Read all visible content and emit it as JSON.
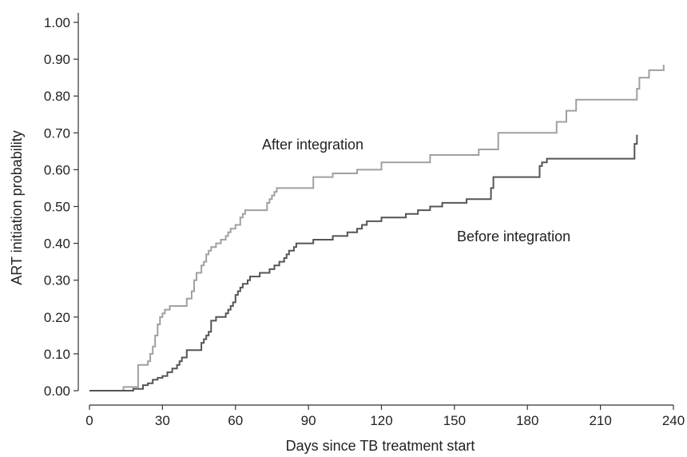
{
  "chart_data": {
    "type": "line",
    "title": "",
    "xlabel": "Days since TB treatment start",
    "ylabel": "ART initiation probability",
    "xlim": [
      0,
      240
    ],
    "ylim": [
      0,
      1
    ],
    "x_ticks": [
      "0",
      "30",
      "60",
      "90",
      "120",
      "150",
      "180",
      "210",
      "240"
    ],
    "y_ticks": [
      "0.00",
      "0.10",
      "0.20",
      "0.30",
      "0.40",
      "0.50",
      "0.60",
      "0.70",
      "0.80",
      "0.90",
      "1.00"
    ],
    "grid": false,
    "legend": "none",
    "step": true,
    "series": [
      {
        "name": "After integration",
        "color": "#a0a0a0",
        "x": [
          0,
          14,
          20,
          21,
          22,
          24,
          25,
          26,
          27,
          28,
          29,
          30,
          31,
          33,
          35,
          40,
          42,
          43,
          44,
          46,
          47,
          48,
          49,
          50,
          52,
          54,
          56,
          57,
          58,
          60,
          62,
          63,
          64,
          73,
          74,
          75,
          76,
          77,
          78,
          92,
          100,
          110,
          120,
          140,
          160,
          168,
          192,
          196,
          200,
          210,
          225,
          226,
          230,
          236
        ],
        "y": [
          0,
          0.01,
          0.07,
          0.07,
          0.07,
          0.08,
          0.1,
          0.12,
          0.15,
          0.18,
          0.2,
          0.21,
          0.22,
          0.23,
          0.23,
          0.25,
          0.27,
          0.3,
          0.32,
          0.34,
          0.35,
          0.37,
          0.38,
          0.39,
          0.4,
          0.41,
          0.42,
          0.43,
          0.44,
          0.45,
          0.47,
          0.48,
          0.49,
          0.51,
          0.52,
          0.53,
          0.54,
          0.55,
          0.55,
          0.58,
          0.59,
          0.6,
          0.62,
          0.64,
          0.655,
          0.7,
          0.73,
          0.76,
          0.79,
          0.79,
          0.82,
          0.85,
          0.87,
          0.885
        ]
      },
      {
        "name": "Before integration",
        "color": "#555555",
        "x": [
          0,
          18,
          22,
          24,
          26,
          28,
          30,
          32,
          34,
          36,
          37,
          38,
          40,
          46,
          47,
          48,
          49,
          50,
          52,
          56,
          57,
          58,
          59,
          60,
          61,
          62,
          63,
          65,
          66,
          68,
          70,
          74,
          76,
          78,
          80,
          81,
          82,
          84,
          85,
          86,
          88,
          92,
          100,
          106,
          110,
          112,
          114,
          116,
          120,
          130,
          135,
          140,
          145,
          150,
          155,
          165,
          166,
          170,
          185,
          186,
          188,
          190,
          192,
          200,
          224,
          225
        ],
        "y": [
          0,
          0.005,
          0.015,
          0.02,
          0.03,
          0.035,
          0.04,
          0.05,
          0.06,
          0.07,
          0.08,
          0.09,
          0.11,
          0.13,
          0.14,
          0.15,
          0.16,
          0.19,
          0.2,
          0.21,
          0.22,
          0.23,
          0.24,
          0.26,
          0.27,
          0.28,
          0.29,
          0.3,
          0.31,
          0.31,
          0.32,
          0.33,
          0.34,
          0.35,
          0.36,
          0.37,
          0.38,
          0.39,
          0.4,
          0.4,
          0.4,
          0.41,
          0.42,
          0.43,
          0.44,
          0.45,
          0.46,
          0.46,
          0.47,
          0.48,
          0.49,
          0.5,
          0.51,
          0.51,
          0.52,
          0.55,
          0.58,
          0.58,
          0.61,
          0.62,
          0.63,
          0.63,
          0.63,
          0.63,
          0.67,
          0.695
        ]
      }
    ]
  }
}
